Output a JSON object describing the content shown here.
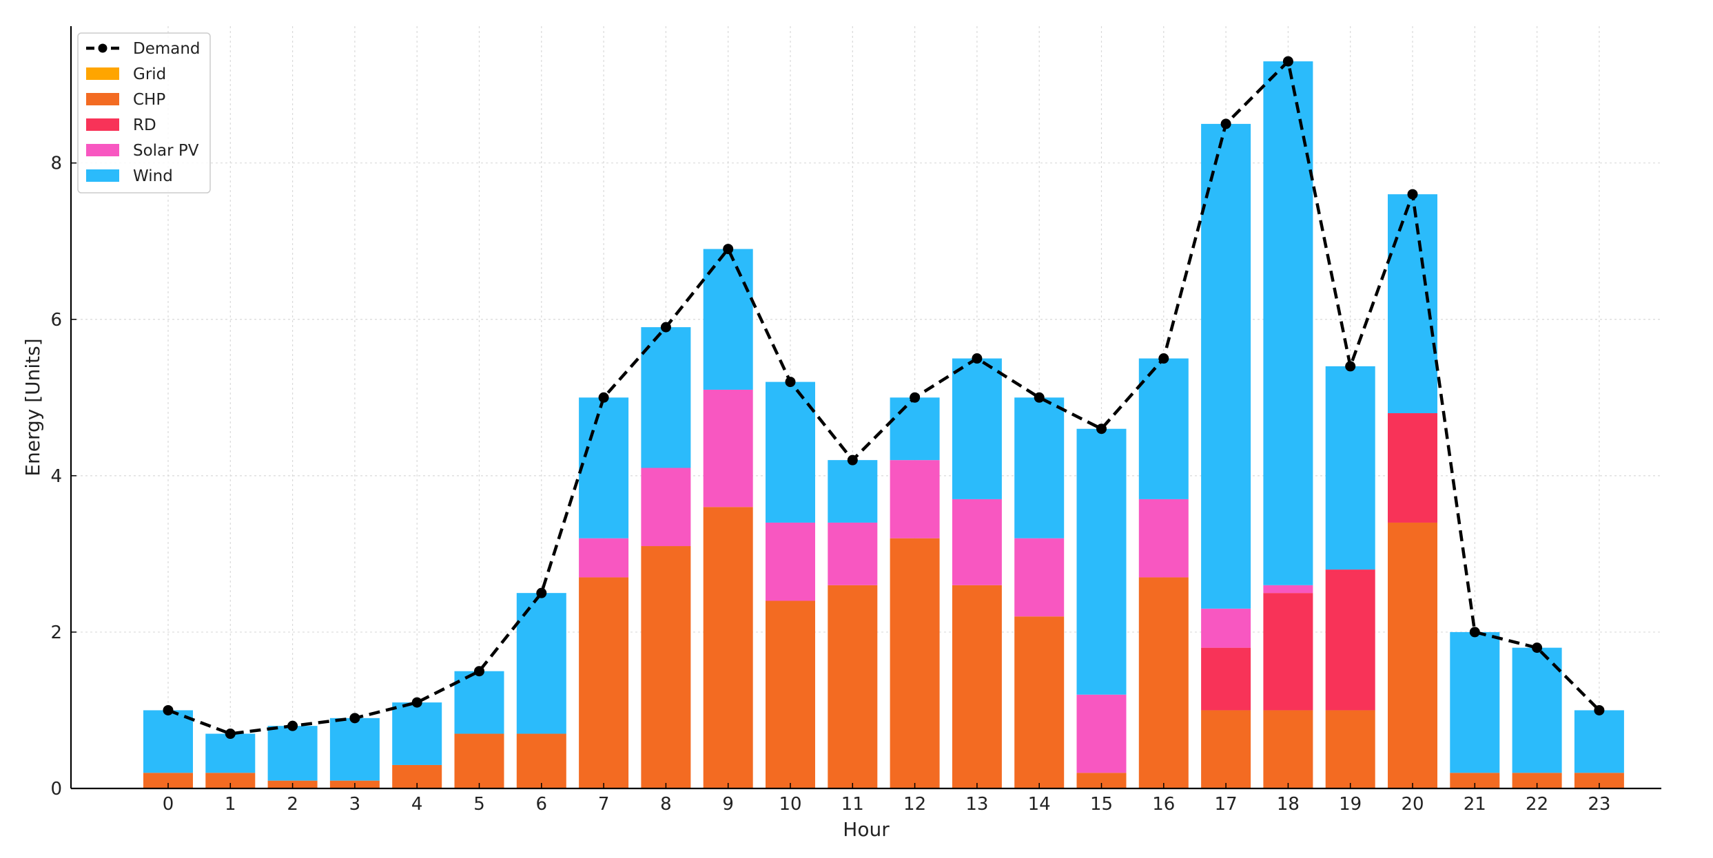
{
  "chart_data": {
    "type": "bar",
    "stacked": true,
    "title": "",
    "xlabel": "Hour",
    "ylabel": "Energy [Units]",
    "ylim": [
      0,
      9.75
    ],
    "yticks": [
      0,
      2,
      4,
      6,
      8
    ],
    "grid": true,
    "legend_position": "top-left",
    "categories": [
      "0",
      "1",
      "2",
      "3",
      "4",
      "5",
      "6",
      "7",
      "8",
      "9",
      "10",
      "11",
      "12",
      "13",
      "14",
      "15",
      "16",
      "17",
      "18",
      "19",
      "20",
      "21",
      "22",
      "23"
    ],
    "series": [
      {
        "name": "Grid",
        "color": "#FFA500",
        "values": [
          0,
          0,
          0,
          0,
          0,
          0,
          0,
          0,
          0,
          0,
          0,
          0,
          0,
          0,
          0,
          0,
          0,
          0,
          0,
          0,
          0,
          0,
          0,
          0
        ]
      },
      {
        "name": "CHP",
        "color": "#F36B22",
        "values": [
          0.2,
          0.2,
          0.1,
          0.1,
          0.3,
          0.7,
          0.7,
          2.7,
          3.1,
          3.6,
          2.4,
          2.6,
          3.2,
          2.6,
          2.2,
          0.2,
          2.7,
          1.0,
          1.0,
          1.0,
          3.4,
          0.2,
          0.2,
          0.2
        ]
      },
      {
        "name": "RD",
        "color": "#F83358",
        "values": [
          0,
          0,
          0,
          0,
          0,
          0,
          0,
          0,
          0,
          0,
          0,
          0,
          0,
          0,
          0,
          0,
          0,
          0.8,
          1.5,
          1.8,
          1.4,
          0,
          0,
          0
        ]
      },
      {
        "name": "Solar PV",
        "color": "#F857C1",
        "values": [
          0,
          0,
          0,
          0,
          0,
          0,
          0,
          0.5,
          1.0,
          1.5,
          1.0,
          0.8,
          1.0,
          1.1,
          1.0,
          1.0,
          1.0,
          0.5,
          0.1,
          0,
          0,
          0,
          0,
          0
        ]
      },
      {
        "name": "Wind",
        "color": "#2BBBFB",
        "values": [
          0.8,
          0.5,
          0.7,
          0.8,
          0.8,
          0.8,
          1.8,
          1.8,
          1.8,
          1.8,
          1.8,
          0.8,
          0.8,
          1.8,
          1.8,
          3.4,
          1.8,
          6.2,
          6.7,
          2.6,
          2.8,
          1.8,
          1.6,
          0.8
        ]
      }
    ],
    "line_series": {
      "name": "Demand",
      "color": "#000000",
      "style": "dashed",
      "values": [
        1.0,
        0.7,
        0.8,
        0.9,
        1.1,
        1.5,
        2.5,
        5.0,
        5.9,
        6.9,
        5.2,
        4.2,
        5.0,
        5.5,
        5.0,
        4.6,
        5.5,
        8.5,
        9.3,
        5.4,
        7.6,
        2.0,
        1.8,
        1.0
      ]
    }
  }
}
